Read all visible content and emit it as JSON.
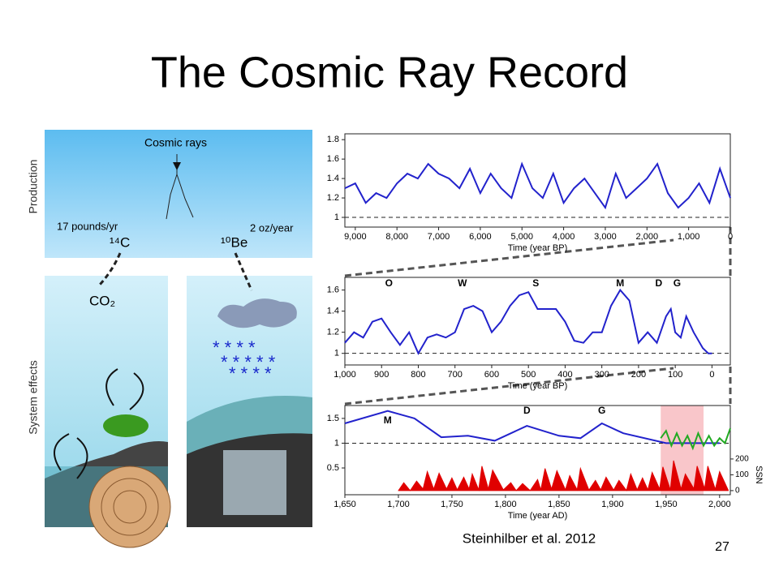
{
  "title": "The Cosmic Ray Record",
  "diagram": {
    "production": "Production",
    "system_effects": "System effects",
    "cosmic_rays": "Cosmic rays",
    "c14_rate": "17 pounds/yr",
    "be10_rate": "2 oz/year",
    "c14": "¹⁴C",
    "be10": "¹⁰Be",
    "co2": "CO₂"
  },
  "citation": "Steinhilber et al. 2012",
  "page_number": "27",
  "chart_data": [
    {
      "type": "line",
      "xlabel": "Time (year BP)",
      "x": [
        9250,
        9000,
        8750,
        8500,
        8250,
        8000,
        7750,
        7500,
        7250,
        7000,
        6750,
        6500,
        6250,
        6000,
        5750,
        5500,
        5250,
        5000,
        4750,
        4500,
        4250,
        4000,
        3750,
        3500,
        3250,
        3000,
        2750,
        2500,
        2250,
        2000,
        1750,
        1500,
        1250,
        1000,
        750,
        500,
        250,
        0
      ],
      "series": [
        {
          "color": "#2222cc",
          "values": [
            1.3,
            1.35,
            1.15,
            1.25,
            1.2,
            1.35,
            1.45,
            1.4,
            1.55,
            1.45,
            1.4,
            1.3,
            1.5,
            1.25,
            1.45,
            1.3,
            1.2,
            1.55,
            1.3,
            1.2,
            1.45,
            1.15,
            1.3,
            1.4,
            1.25,
            1.1,
            1.45,
            1.2,
            1.3,
            1.4,
            1.55,
            1.25,
            1.1,
            1.2,
            1.35,
            1.15,
            1.5,
            1.2
          ]
        }
      ],
      "xlim": [
        9250,
        0
      ],
      "ylim": [
        0.9,
        1.86
      ],
      "xticks": [
        {
          "value": 9000,
          "label": "9,000"
        },
        {
          "value": 8000,
          "label": "8,000"
        },
        {
          "value": 7000,
          "label": "7,000"
        },
        {
          "value": 6000,
          "label": "6,000"
        },
        {
          "value": 5000,
          "label": "5,000"
        },
        {
          "value": 4000,
          "label": "4,000"
        },
        {
          "value": 3000,
          "label": "3,000"
        },
        {
          "value": 2000,
          "label": "2,000"
        },
        {
          "value": 1000,
          "label": "1,000"
        },
        0
      ],
      "yticks": [
        1,
        1.2,
        1.4,
        1.6,
        1.8
      ],
      "reference_line": 1
    },
    {
      "type": "line",
      "xlabel": "Time (year BP)",
      "x": [
        1000,
        975,
        950,
        925,
        900,
        875,
        850,
        825,
        800,
        775,
        750,
        725,
        700,
        675,
        650,
        625,
        600,
        575,
        550,
        525,
        500,
        475,
        450,
        425,
        400,
        375,
        350,
        325,
        300,
        275,
        250,
        225,
        200,
        175,
        150,
        125,
        112,
        100,
        85,
        70,
        50,
        25,
        10,
        0
      ],
      "series": [
        {
          "color": "#2222cc",
          "values": [
            1.1,
            1.2,
            1.15,
            1.3,
            1.33,
            1.2,
            1.08,
            1.2,
            1.0,
            1.15,
            1.18,
            1.15,
            1.2,
            1.42,
            1.45,
            1.4,
            1.2,
            1.3,
            1.45,
            1.55,
            1.58,
            1.42,
            1.42,
            1.42,
            1.3,
            1.12,
            1.1,
            1.2,
            1.2,
            1.45,
            1.6,
            1.5,
            1.1,
            1.2,
            1.1,
            1.35,
            1.42,
            1.2,
            1.15,
            1.35,
            1.2,
            1.05,
            1.0,
            1.0
          ]
        }
      ],
      "xlim": [
        1000,
        -50
      ],
      "ylim": [
        0.89,
        1.72
      ],
      "xticks": [
        {
          "value": 1000,
          "label": "1,000"
        },
        900,
        800,
        700,
        600,
        500,
        400,
        300,
        200,
        100,
        0
      ],
      "yticks": [
        1,
        1.2,
        1.4,
        1.6
      ],
      "reference_line": 1,
      "annotations": [
        {
          "text": "O",
          "x": 880,
          "y": 1.66
        },
        {
          "text": "W",
          "x": 680,
          "y": 1.66
        },
        {
          "text": "S",
          "x": 480,
          "y": 1.66
        },
        {
          "text": "M",
          "x": 250,
          "y": 1.66
        },
        {
          "text": "D",
          "x": 145,
          "y": 1.66
        },
        {
          "text": "G",
          "x": 95,
          "y": 1.66
        }
      ]
    },
    {
      "type": "line",
      "xlabel": "Time (year AD)",
      "y2label": "SSN",
      "x": [
        1650,
        1690,
        1715,
        1740,
        1765,
        1790,
        1820,
        1850,
        1870,
        1890,
        1910,
        1950,
        1975,
        2000
      ],
      "series": [
        {
          "color": "#2222cc",
          "values": [
            1.4,
            1.65,
            1.5,
            1.12,
            1.15,
            1.05,
            1.35,
            1.15,
            1.1,
            1.4,
            1.2,
            1.0,
            1.0,
            1.0
          ]
        },
        {
          "color": "#22aa22",
          "x": [
            1945,
            1950,
            1955,
            1960,
            1965,
            1970,
            1975,
            1980,
            1985,
            1990,
            1995,
            2000,
            2005,
            2010
          ],
          "values": [
            1.1,
            1.25,
            0.95,
            1.2,
            0.95,
            1.15,
            0.9,
            1.2,
            0.95,
            1.15,
            0.95,
            1.1,
            1.0,
            1.3
          ]
        },
        {
          "color": "#e00000",
          "type": "area",
          "axis": "y2",
          "x": [
            1700,
            1705,
            1711,
            1717,
            1723,
            1727,
            1733,
            1738,
            1745,
            1750,
            1755,
            1761,
            1766,
            1769,
            1775,
            1778,
            1784,
            1788,
            1798,
            1805,
            1810,
            1816,
            1823,
            1830,
            1833,
            1837,
            1843,
            1848,
            1856,
            1860,
            1867,
            1870,
            1878,
            1884,
            1889,
            1894,
            1901,
            1906,
            1913,
            1917,
            1923,
            1928,
            1933,
            1937,
            1944,
            1947,
            1954,
            1957,
            1964,
            1968,
            1976,
            1979,
            1986,
            1989,
            1996,
            2000,
            2008
          ],
          "values": [
            0,
            50,
            0,
            60,
            10,
            120,
            10,
            110,
            10,
            80,
            5,
            85,
            10,
            105,
            5,
            155,
            10,
            130,
            5,
            50,
            0,
            45,
            0,
            70,
            5,
            140,
            10,
            125,
            5,
            95,
            5,
            140,
            3,
            65,
            5,
            85,
            3,
            65,
            1,
            105,
            5,
            80,
            5,
            115,
            10,
            150,
            5,
            190,
            10,
            105,
            12,
            155,
            13,
            155,
            8,
            120,
            3
          ]
        }
      ],
      "xlim": [
        1650,
        2010
      ],
      "ylim": [
        -0.04,
        1.76
      ],
      "y2lim": [
        -26,
        538
      ],
      "xticks": [
        {
          "value": 1650,
          "label": "1,650"
        },
        {
          "value": 1700,
          "label": "1,700"
        },
        {
          "value": 1750,
          "label": "1,750"
        },
        {
          "value": 1800,
          "label": "1,800"
        },
        {
          "value": 1850,
          "label": "1,850"
        },
        {
          "value": 1900,
          "label": "1,900"
        },
        {
          "value": 1950,
          "label": "1,950"
        },
        {
          "value": 2000,
          "label": "2,000"
        }
      ],
      "yticks": [
        0.5,
        1,
        1.5
      ],
      "y2ticks": [
        0,
        100,
        200
      ],
      "reference_line": 1,
      "highlight": [
        1945,
        1985
      ],
      "annotations": [
        {
          "text": "M",
          "x": 1690,
          "y": 1.45
        },
        {
          "text": "D",
          "x": 1820,
          "y": 1.65
        },
        {
          "text": "G",
          "x": 1890,
          "y": 1.65
        }
      ]
    }
  ]
}
